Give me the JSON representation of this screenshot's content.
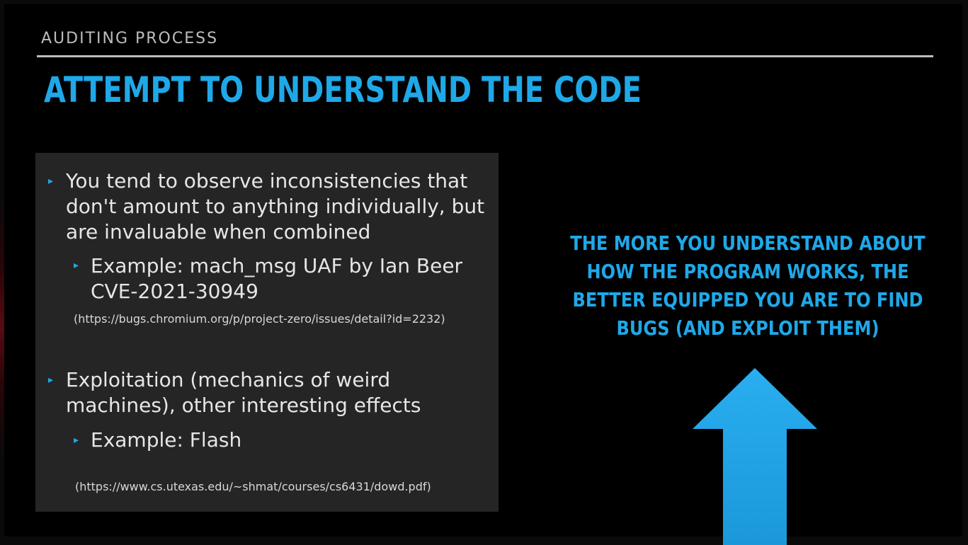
{
  "slide": {
    "section_label": "AUDITING PROCESS",
    "title": "ATTEMPT TO UNDERSTAND THE CODE",
    "bullets": [
      {
        "text": "You tend to observe inconsistencies that don't amount to anything individually, but are invaluable when combined",
        "sub": {
          "text": "Example: mach_msg UAF by Ian Beer CVE-2021-30949",
          "url": "(https://bugs.chromium.org/p/project-zero/issues/detail?id=2232)"
        }
      },
      {
        "text": "Exploitation (mechanics of weird machines), other interesting effects",
        "sub": {
          "text": "Example: Flash",
          "url": "(https://www.cs.utexas.edu/~shmat/courses/cs6431/dowd.pdf)"
        }
      }
    ],
    "callout": "THE MORE YOU UNDERSTAND ABOUT HOW THE PROGRAM WORKS, THE BETTER EQUIPPED YOU ARE TO FIND BUGS (AND EXPLOIT THEM)",
    "bullet_marker": "▸",
    "colors": {
      "accent": "#1fa8e8",
      "panel": "#252525",
      "background": "#000000",
      "text": "#e6e6e6"
    },
    "icons": [
      "up-arrow-icon"
    ]
  }
}
